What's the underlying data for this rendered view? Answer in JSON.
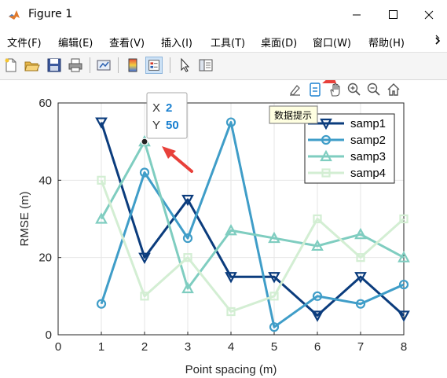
{
  "window": {
    "title": "Figure 1",
    "app_icon": "matlab-logo-icon",
    "controls": [
      "minimize-icon",
      "maximize-icon",
      "close-icon"
    ]
  },
  "menu": {
    "items": [
      "文件(F)",
      "编辑(E)",
      "查看(V)",
      "插入(I)",
      "工具(T)",
      "桌面(D)",
      "窗口(W)",
      "帮助(H)"
    ],
    "overflow_icon": "chevron-right-icon"
  },
  "toolbar": {
    "icons": [
      "new-figure-icon",
      "open-file-icon",
      "save-icon",
      "print-icon",
      "link-plot-icon",
      "colorbar-icon",
      "legend-icon",
      "edit-plot-icon",
      "property-inspector-icon"
    ]
  },
  "axes_toolbar": {
    "icons": [
      "brush-icon",
      "data-tips-icon",
      "pan-icon",
      "zoom-in-icon",
      "zoom-out-icon",
      "home-icon"
    ],
    "tooltip": "数据提示"
  },
  "datatip": {
    "x_label": "X",
    "x_value": "2",
    "y_label": "Y",
    "y_value": "50"
  },
  "chart_data": {
    "type": "line",
    "x": [
      1,
      2,
      3,
      4,
      5,
      6,
      7,
      8
    ],
    "series": [
      {
        "name": "samp1",
        "values": [
          55,
          20,
          35,
          15,
          15,
          5,
          15,
          5
        ],
        "color": "#0b3c7d",
        "marker": "triangle-down"
      },
      {
        "name": "samp2",
        "values": [
          8,
          42,
          25,
          55,
          2,
          10,
          8,
          13
        ],
        "color": "#3f9dc8",
        "marker": "circle"
      },
      {
        "name": "samp3",
        "values": [
          30,
          50,
          12,
          27,
          25,
          23,
          26,
          20
        ],
        "color": "#7fcdc0",
        "marker": "triangle-up"
      },
      {
        "name": "samp4",
        "values": [
          40,
          10,
          20,
          6,
          10,
          30,
          20,
          30
        ],
        "color": "#d3eed3",
        "marker": "square"
      }
    ],
    "xlabel": "Point spacing (m)",
    "ylabel": "RMSE (m)",
    "xlim": [
      0,
      8
    ],
    "ylim": [
      0,
      60
    ],
    "xticks": [
      0,
      1,
      2,
      3,
      4,
      5,
      6,
      7,
      8
    ],
    "yticks": [
      0,
      20,
      40,
      60
    ],
    "grid": true,
    "legend_position": "top-right",
    "annotation_color": "#e8403a"
  }
}
